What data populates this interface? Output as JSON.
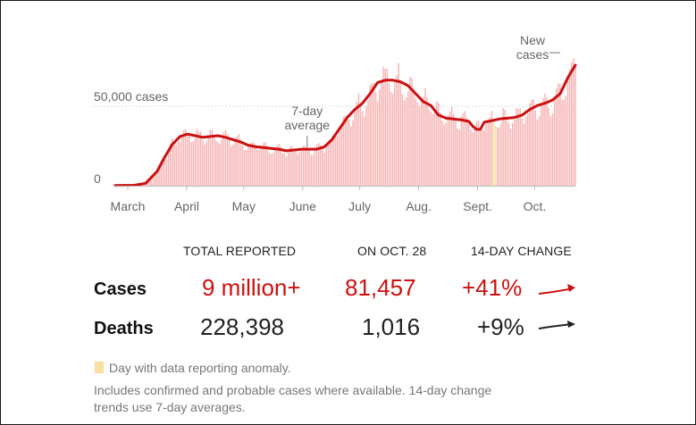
{
  "chart_data": {
    "type": "bar",
    "title": "",
    "xlabel": "",
    "ylabel": "",
    "ylim": [
      0,
      90000
    ],
    "y_ticks": [
      {
        "value": 0,
        "label": "0"
      },
      {
        "value": 50000,
        "label": "50,000 cases"
      }
    ],
    "month_ticks": [
      {
        "day": 0,
        "label": "March"
      },
      {
        "day": 31,
        "label": "April"
      },
      {
        "day": 61,
        "label": "May"
      },
      {
        "day": 92,
        "label": "June"
      },
      {
        "day": 122,
        "label": "July"
      },
      {
        "day": 153,
        "label": "Aug."
      },
      {
        "day": 184,
        "label": "Sept."
      },
      {
        "day": 214,
        "label": "Oct."
      }
    ],
    "x_range_days": [
      0,
      242
    ],
    "anomaly_days": [
      199,
      200
    ],
    "series": [
      {
        "name": "New cases",
        "style": "bars",
        "color": "#f6b7b7"
      },
      {
        "name": "7-day average",
        "style": "line",
        "color": "#cc1010",
        "points": [
          [
            0,
            100
          ],
          [
            10,
            300
          ],
          [
            16,
            1500
          ],
          [
            22,
            9000
          ],
          [
            26,
            18000
          ],
          [
            30,
            26000
          ],
          [
            34,
            31000
          ],
          [
            38,
            32500
          ],
          [
            42,
            31500
          ],
          [
            46,
            30500
          ],
          [
            50,
            31000
          ],
          [
            54,
            31500
          ],
          [
            58,
            30500
          ],
          [
            62,
            29000
          ],
          [
            66,
            27500
          ],
          [
            70,
            25500
          ],
          [
            74,
            24500
          ],
          [
            78,
            24000
          ],
          [
            82,
            23500
          ],
          [
            86,
            23000
          ],
          [
            90,
            22000
          ],
          [
            94,
            22500
          ],
          [
            98,
            23000
          ],
          [
            102,
            23000
          ],
          [
            106,
            23000
          ],
          [
            110,
            24500
          ],
          [
            114,
            29000
          ],
          [
            118,
            36000
          ],
          [
            122,
            43000
          ],
          [
            126,
            48000
          ],
          [
            130,
            52000
          ],
          [
            134,
            58000
          ],
          [
            138,
            65000
          ],
          [
            142,
            66500
          ],
          [
            146,
            66500
          ],
          [
            150,
            65500
          ],
          [
            154,
            63000
          ],
          [
            158,
            58000
          ],
          [
            162,
            53000
          ],
          [
            166,
            50500
          ],
          [
            170,
            44500
          ],
          [
            174,
            42500
          ],
          [
            178,
            42000
          ],
          [
            182,
            41500
          ],
          [
            186,
            40500
          ],
          [
            188,
            37500
          ],
          [
            190,
            35500
          ],
          [
            192,
            35500
          ],
          [
            194,
            40000
          ],
          [
            198,
            41000
          ],
          [
            202,
            42000
          ],
          [
            206,
            42500
          ],
          [
            210,
            43000
          ],
          [
            214,
            44500
          ],
          [
            218,
            48000
          ],
          [
            222,
            50500
          ],
          [
            226,
            52000
          ],
          [
            230,
            54000
          ],
          [
            234,
            58000
          ],
          [
            238,
            68000
          ],
          [
            242,
            76000
          ]
        ]
      }
    ],
    "annotations": [
      {
        "day": 100,
        "label_lines": [
          "7-day",
          "average"
        ]
      },
      {
        "day": 240,
        "label_lines": [
          "New",
          "cases"
        ]
      }
    ]
  },
  "stats": {
    "headers": {
      "total": "TOTAL REPORTED",
      "on_date": "ON OCT. 28",
      "change": "14-DAY CHANGE"
    },
    "rows": [
      {
        "label": "Cases",
        "total": "9 million+",
        "on_date": "81,457",
        "change": "+41%",
        "color": "#cc1010"
      },
      {
        "label": "Deaths",
        "total": "228,398",
        "on_date": "1,016",
        "change": "+9%",
        "color": "#222222"
      }
    ]
  },
  "notes": {
    "anomaly": "Day with data reporting anomaly.",
    "line1": "Includes confirmed and probable cases where available. 14-day change",
    "line2": "trends use 7-day averages."
  }
}
